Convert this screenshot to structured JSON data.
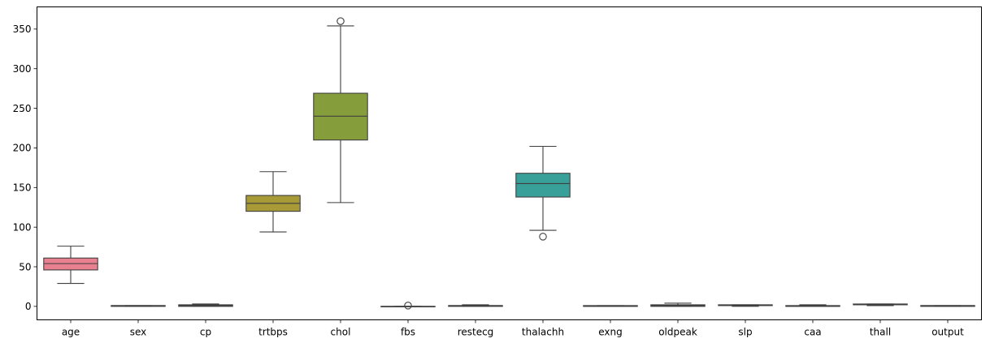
{
  "chart_data": {
    "type": "boxplot",
    "title": "",
    "xlabel": "",
    "ylabel": "",
    "ylim": [
      -17,
      378
    ],
    "yticks": [
      0,
      50,
      100,
      150,
      200,
      250,
      300,
      350
    ],
    "ytick_labels": [
      "0",
      "50",
      "100",
      "150",
      "200",
      "250",
      "300",
      "350"
    ],
    "grid": false,
    "categories": [
      "age",
      "sex",
      "cp",
      "trtbps",
      "chol",
      "fbs",
      "restecg",
      "thalachh",
      "exng",
      "oldpeak",
      "slp",
      "caa",
      "thall",
      "output"
    ],
    "boxes": [
      {
        "name": "age",
        "whislo": 29,
        "q1": 46,
        "med": 54,
        "q3": 61,
        "whishi": 76,
        "fliers": [],
        "color": "#e8808f"
      },
      {
        "name": "sex",
        "whislo": 0,
        "q1": 0,
        "med": 1,
        "q3": 1,
        "whishi": 1,
        "fliers": [],
        "color": "#de8740"
      },
      {
        "name": "cp",
        "whislo": 0,
        "q1": 0,
        "med": 1,
        "q3": 2,
        "whishi": 3,
        "fliers": [],
        "color": "#c59439"
      },
      {
        "name": "trtbps",
        "whislo": 94,
        "q1": 120,
        "med": 130,
        "q3": 140,
        "whishi": 170,
        "fliers": [],
        "color": "#a89a37"
      },
      {
        "name": "chol",
        "whislo": 131,
        "q1": 210,
        "med": 240,
        "q3": 269,
        "whishi": 354,
        "fliers": [
          360
        ],
        "color": "#859e3b"
      },
      {
        "name": "fbs",
        "whislo": 0,
        "q1": 0,
        "med": 0,
        "q3": 0,
        "whishi": 0,
        "fliers": [
          1
        ],
        "color": "#52a83c"
      },
      {
        "name": "restecg",
        "whislo": 0,
        "q1": 0,
        "med": 1,
        "q3": 1,
        "whishi": 2,
        "fliers": [],
        "color": "#3ba582"
      },
      {
        "name": "thalachh",
        "whislo": 96,
        "q1": 138,
        "med": 155,
        "q3": 168,
        "whishi": 202,
        "fliers": [
          88
        ],
        "color": "#39a099"
      },
      {
        "name": "exng",
        "whislo": 0,
        "q1": 0,
        "med": 0,
        "q3": 1,
        "whishi": 1,
        "fliers": [],
        "color": "#3c9ca8"
      },
      {
        "name": "oldpeak",
        "whislo": 0,
        "q1": 0,
        "med": 1,
        "q3": 2,
        "whishi": 4,
        "fliers": [],
        "color": "#3d9bc7"
      },
      {
        "name": "slp",
        "whislo": 0,
        "q1": 1,
        "med": 1,
        "q3": 2,
        "whishi": 2,
        "fliers": [],
        "color": "#7a95e0"
      },
      {
        "name": "caa",
        "whislo": 0,
        "q1": 0,
        "med": 0,
        "q3": 1,
        "whishi": 2,
        "fliers": [],
        "color": "#af87e5"
      },
      {
        "name": "thall",
        "whislo": 1,
        "q1": 2,
        "med": 2,
        "q3": 3,
        "whishi": 3,
        "fliers": [],
        "color": "#d979d5"
      },
      {
        "name": "output",
        "whislo": 0,
        "q1": 0,
        "med": 1,
        "q3": 1,
        "whishi": 1,
        "fliers": [],
        "color": "#e57cae"
      }
    ]
  }
}
